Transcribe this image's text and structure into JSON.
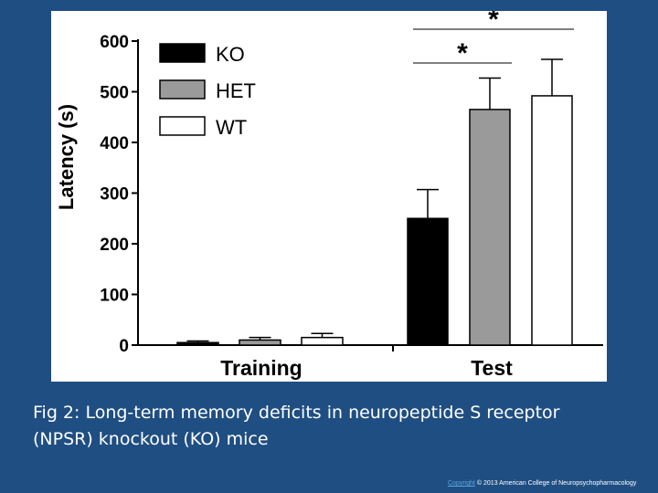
{
  "caption": "Fig 2: Long-term memory deficits in neuropeptide S receptor (NPSR) knockout (KO) mice",
  "footer": {
    "link_text": "Copyright",
    "text": "© 2013 American College of Neuropsychopharmacology"
  },
  "colors": {
    "background": "#1f4e82",
    "panel": "#ffffff",
    "KO": "#000000",
    "HET": "#9a9a9a",
    "WT": "#ffffff",
    "link": "#5aa7e6"
  },
  "chart_data": {
    "type": "bar",
    "ylabel": "Latency (s)",
    "xlabel": "",
    "ylim": [
      0,
      600
    ],
    "yticks": [
      0,
      100,
      200,
      300,
      400,
      500,
      600
    ],
    "categories": [
      "Training",
      "Test"
    ],
    "legend_position": "top-left",
    "grid": false,
    "series": [
      {
        "name": "KO",
        "values": [
          5,
          250
        ],
        "errors": [
          3,
          57
        ]
      },
      {
        "name": "HET",
        "values": [
          10,
          465
        ],
        "errors": [
          5,
          62
        ]
      },
      {
        "name": "WT",
        "values": [
          15,
          492
        ],
        "errors": [
          8,
          72
        ]
      }
    ],
    "significance": [
      {
        "label": "*",
        "from_series": "KO",
        "to_series": "HET",
        "category": "Test"
      },
      {
        "label": "*",
        "from_series": "KO",
        "to_series": "WT",
        "category": "Test"
      }
    ]
  }
}
